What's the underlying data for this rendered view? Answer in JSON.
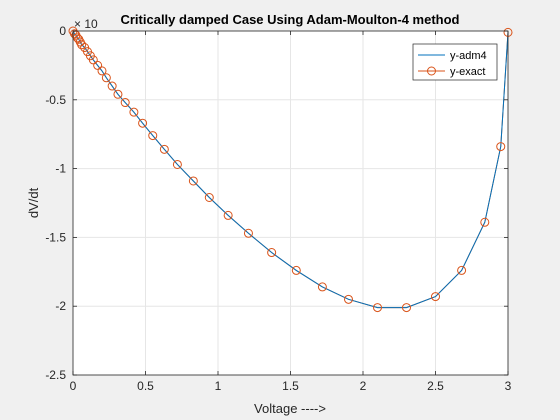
{
  "chart_data": {
    "type": "line",
    "title": "Critically damped Case Using Adam-Moulton-4 method",
    "xlabel": "Voltage ---->",
    "ylabel": "dV/dt",
    "exponent_label": "× 10",
    "xlim": [
      0,
      3
    ],
    "ylim": [
      -2.5,
      0
    ],
    "xticks": [
      "0",
      "0.5",
      "1",
      "1.5",
      "2",
      "2.5",
      "3"
    ],
    "yticks": [
      "0",
      "-0.5",
      "-1",
      "-1.5",
      "-2",
      "-2.5"
    ],
    "grid": true,
    "legend_position": "top-right",
    "series": [
      {
        "name": "y-adm4",
        "color": "#0072bd",
        "marker": "none",
        "x": [
          0,
          0.01,
          0.02,
          0.03,
          0.04,
          0.05,
          0.06,
          0.08,
          0.1,
          0.12,
          0.14,
          0.17,
          0.2,
          0.23,
          0.27,
          0.31,
          0.36,
          0.42,
          0.48,
          0.55,
          0.63,
          0.72,
          0.83,
          0.94,
          1.07,
          1.21,
          1.37,
          1.54,
          1.72,
          1.9,
          2.1,
          2.3,
          2.5,
          2.68,
          2.84,
          2.95,
          3.0
        ],
        "y": [
          0,
          -0.02,
          -0.03,
          -0.05,
          -0.06,
          -0.08,
          -0.1,
          -0.12,
          -0.15,
          -0.18,
          -0.21,
          -0.25,
          -0.29,
          -0.34,
          -0.4,
          -0.46,
          -0.52,
          -0.59,
          -0.67,
          -0.76,
          -0.86,
          -0.97,
          -1.09,
          -1.21,
          -1.34,
          -1.47,
          -1.61,
          -1.74,
          -1.86,
          -1.95,
          -2.01,
          -2.01,
          -1.93,
          -1.74,
          -1.39,
          -0.84,
          -0.01
        ]
      },
      {
        "name": "y-exact",
        "color": "#d95319",
        "marker": "circle",
        "x": [
          0,
          0.01,
          0.02,
          0.03,
          0.04,
          0.05,
          0.06,
          0.08,
          0.1,
          0.12,
          0.14,
          0.17,
          0.2,
          0.23,
          0.27,
          0.31,
          0.36,
          0.42,
          0.48,
          0.55,
          0.63,
          0.72,
          0.83,
          0.94,
          1.07,
          1.21,
          1.37,
          1.54,
          1.72,
          1.9,
          2.1,
          2.3,
          2.5,
          2.68,
          2.84,
          2.95,
          3.0
        ],
        "y": [
          0,
          -0.02,
          -0.03,
          -0.05,
          -0.06,
          -0.08,
          -0.1,
          -0.12,
          -0.15,
          -0.18,
          -0.21,
          -0.25,
          -0.29,
          -0.34,
          -0.4,
          -0.46,
          -0.52,
          -0.59,
          -0.67,
          -0.76,
          -0.86,
          -0.97,
          -1.09,
          -1.21,
          -1.34,
          -1.47,
          -1.61,
          -1.74,
          -1.86,
          -1.95,
          -2.01,
          -2.01,
          -1.93,
          -1.74,
          -1.39,
          -0.84,
          -0.01
        ]
      }
    ]
  }
}
